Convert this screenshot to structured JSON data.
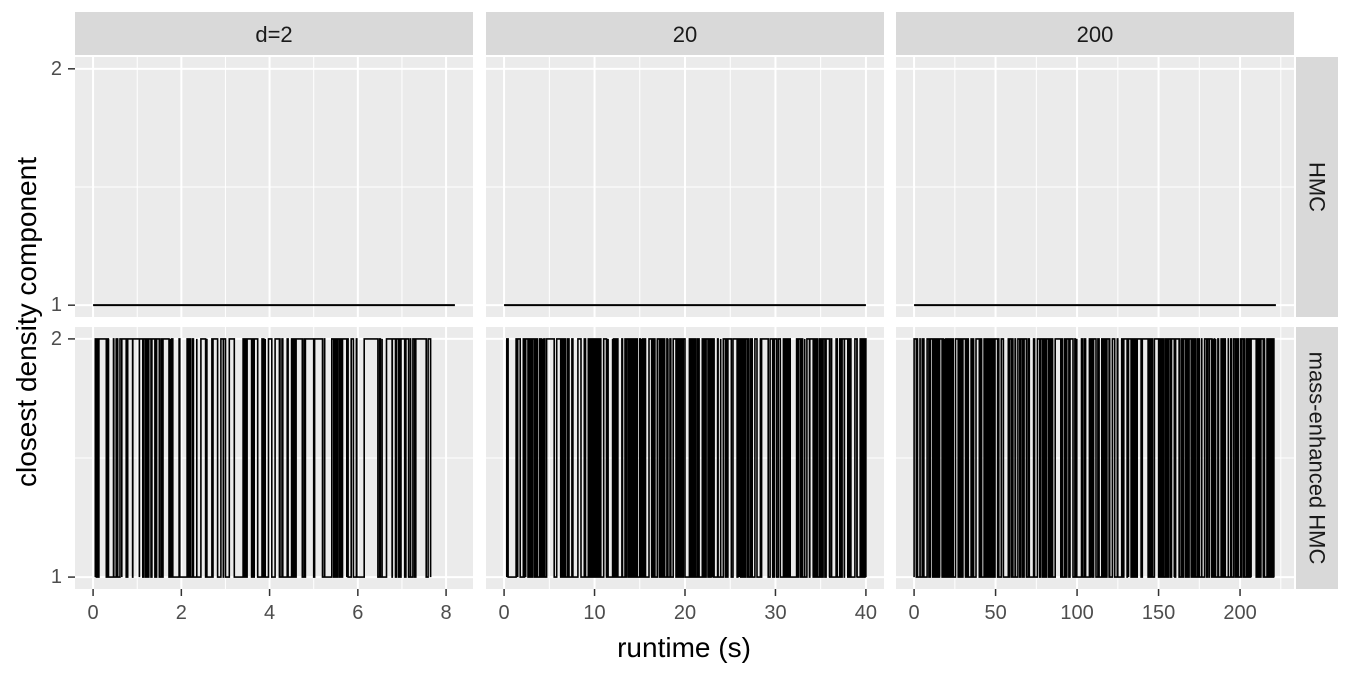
{
  "chart_data": {
    "type": "line",
    "xlabel": "runtime (s)",
    "ylabel": "closest density component",
    "columns": [
      "d=2",
      "20",
      "200"
    ],
    "rows": [
      "HMC",
      "mass-enhanced HMC"
    ],
    "x_ticks": [
      [
        0,
        2,
        4,
        6,
        8
      ],
      [
        0,
        10,
        20,
        30,
        40
      ],
      [
        0,
        50,
        100,
        150,
        200
      ]
    ],
    "x_ranges": [
      [
        -0.41,
        8.61
      ],
      [
        -2.0,
        42.0
      ],
      [
        -11.1,
        233.1
      ]
    ],
    "y_ticks": [
      1,
      2
    ],
    "y_range": [
      0.95,
      2.05
    ],
    "grid": true,
    "panels": [
      {
        "row": "HMC",
        "column": "d=2",
        "x_end": 8.2,
        "segments": [
          [
            0,
            8.2,
            1
          ]
        ]
      },
      {
        "row": "HMC",
        "column": "20",
        "x_end": 40.0,
        "segments": [
          [
            0,
            40.0,
            1
          ]
        ]
      },
      {
        "row": "HMC",
        "column": "200",
        "x_end": 222,
        "segments": [
          [
            0,
            222,
            1
          ]
        ]
      },
      {
        "row": "mass-enhanced HMC",
        "column": "d=2",
        "x_end": 7.65,
        "switches": 120,
        "segments": [
          [
            0.05,
            0.35,
            1
          ],
          [
            0.35,
            0.55,
            2
          ],
          [
            0.55,
            0.65,
            1
          ],
          [
            0.65,
            0.75,
            2
          ],
          [
            0.9,
            1.05,
            1
          ],
          [
            1.05,
            1.25,
            2
          ],
          [
            1.4,
            1.5,
            2
          ],
          [
            1.55,
            1.75,
            1
          ],
          [
            1.75,
            1.95,
            2
          ],
          [
            1.95,
            2.2,
            1
          ],
          [
            2.2,
            2.35,
            2
          ],
          [
            2.35,
            2.95,
            1
          ],
          [
            3.0,
            3.2,
            2
          ],
          [
            3.4,
            3.65,
            1
          ],
          [
            3.65,
            3.9,
            2
          ],
          [
            3.9,
            4.05,
            1
          ],
          [
            4.4,
            4.55,
            1
          ],
          [
            4.6,
            4.8,
            2
          ],
          [
            5.0,
            5.2,
            2
          ],
          [
            5.25,
            5.5,
            1
          ],
          [
            5.5,
            5.75,
            2
          ],
          [
            5.75,
            5.85,
            1
          ],
          [
            5.9,
            6.55,
            2
          ],
          [
            6.55,
            6.65,
            1
          ],
          [
            7.15,
            7.55,
            2
          ]
        ]
      },
      {
        "row": "mass-enhanced HMC",
        "column": "20",
        "x_end": 40.0,
        "switches": 280,
        "segments": [
          [
            0.3,
            1.5,
            1
          ],
          [
            1.5,
            3.5,
            2
          ],
          [
            3.5,
            4.5,
            1
          ],
          [
            7.5,
            8.5,
            1
          ],
          [
            9.0,
            9.5,
            2
          ],
          [
            10.0,
            11.5,
            1
          ],
          [
            11.5,
            12.0,
            2
          ],
          [
            12.0,
            13.5,
            1
          ],
          [
            14.0,
            15.5,
            2
          ],
          [
            18.0,
            19.0,
            1
          ],
          [
            19.5,
            21.0,
            2
          ],
          [
            21.5,
            23.0,
            1
          ],
          [
            24.5,
            26.0,
            2
          ],
          [
            26.0,
            27.0,
            1
          ],
          [
            31.5,
            32.5,
            1
          ],
          [
            33.0,
            35.0,
            2
          ],
          [
            35.0,
            36.0,
            1
          ],
          [
            38.0,
            39.0,
            2
          ],
          [
            39.0,
            40.0,
            1
          ]
        ]
      },
      {
        "row": "mass-enhanced HMC",
        "column": "200",
        "x_end": 221,
        "switches": 300,
        "segments": [
          [
            0,
            5,
            1
          ],
          [
            6,
            12,
            2
          ],
          [
            18,
            24,
            1
          ],
          [
            28,
            35,
            2
          ],
          [
            38,
            45,
            1
          ],
          [
            52,
            60,
            2
          ],
          [
            62,
            70,
            1
          ],
          [
            80,
            85,
            2
          ],
          [
            90,
            95,
            1
          ],
          [
            120,
            125,
            2
          ],
          [
            140,
            145,
            1
          ],
          [
            150,
            160,
            2
          ],
          [
            170,
            175,
            1
          ],
          [
            180,
            185,
            2
          ],
          [
            205,
            210,
            1
          ],
          [
            215,
            220,
            2
          ]
        ]
      }
    ]
  }
}
